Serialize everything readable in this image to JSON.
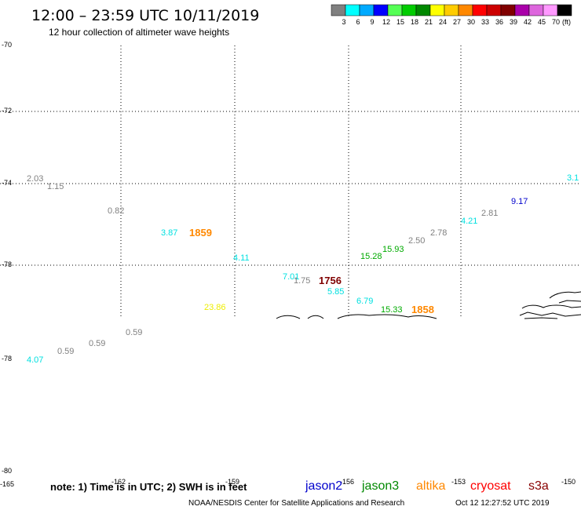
{
  "title": "12:00 – 23:59 UTC 10/11/2019",
  "subtitle": "12 hour collection of altimeter wave heights",
  "scale": {
    "unit": "(ft)",
    "bins": [
      {
        "label": "3",
        "color": "#808080"
      },
      {
        "label": "6",
        "color": "#00ffff"
      },
      {
        "label": "9",
        "color": "#00aaff"
      },
      {
        "label": "12",
        "color": "#0000ff"
      },
      {
        "label": "15",
        "color": "#55ff55"
      },
      {
        "label": "18",
        "color": "#00cc00"
      },
      {
        "label": "21",
        "color": "#008800"
      },
      {
        "label": "24",
        "color": "#ffff00"
      },
      {
        "label": "27",
        "color": "#ffcc00"
      },
      {
        "label": "30",
        "color": "#ff8800"
      },
      {
        "label": "33",
        "color": "#ff0000"
      },
      {
        "label": "36",
        "color": "#cc0000"
      },
      {
        "label": "39",
        "color": "#800000"
      },
      {
        "label": "42",
        "color": "#aa00aa"
      },
      {
        "label": "45",
        "color": "#dd66dd"
      },
      {
        "label": "70",
        "color": "#ff99ff"
      },
      {
        "label": "",
        "color": "#000000"
      }
    ]
  },
  "lat_ticks": [
    "-70",
    "-72",
    "-74",
    "-78",
    "-78",
    "-80"
  ],
  "lon_ticks": [
    "-165",
    "-162",
    "-159",
    "-156",
    "-153",
    "-150"
  ],
  "wave_heights": [
    {
      "text": "2.03",
      "color": "#808080"
    },
    {
      "text": "1.15",
      "color": "#808080"
    },
    {
      "text": "0.82",
      "color": "#808080"
    },
    {
      "text": "3.87",
      "color": "#00e0e0"
    },
    {
      "text": "4.11",
      "color": "#00e0e0"
    },
    {
      "text": "7.01",
      "color": "#00e0e0"
    },
    {
      "text": "1.75",
      "color": "#808080"
    },
    {
      "text": "5.85",
      "color": "#00e0e0"
    },
    {
      "text": "6.79",
      "color": "#00e0e0"
    },
    {
      "text": "15.33",
      "color": "#00aa00"
    },
    {
      "text": "15.28",
      "color": "#00aa00"
    },
    {
      "text": "15.93",
      "color": "#00aa00"
    },
    {
      "text": "2.50",
      "color": "#808080"
    },
    {
      "text": "2.78",
      "color": "#808080"
    },
    {
      "text": "4.21",
      "color": "#00e0e0"
    },
    {
      "text": "2.81",
      "color": "#808080"
    },
    {
      "text": "9.17",
      "color": "#0000cc"
    },
    {
      "text": "3.1",
      "color": "#00e0e0"
    },
    {
      "text": "23.86",
      "color": "#eeee00"
    },
    {
      "text": "0.59",
      "color": "#808080"
    },
    {
      "text": "0.59",
      "color": "#808080"
    },
    {
      "text": "0.59",
      "color": "#808080"
    },
    {
      "text": "4.07",
      "color": "#00e0e0"
    }
  ],
  "pass_times": [
    {
      "text": "1859",
      "color": "#ff8800"
    },
    {
      "text": "1756",
      "color": "#800000"
    },
    {
      "text": "1858",
      "color": "#ff8800"
    }
  ],
  "note": "note: 1) Time is in UTC; 2) SWH is in feet",
  "satellites": [
    {
      "name": "jason2",
      "color": "#0000cc"
    },
    {
      "name": "jason3",
      "color": "#008800"
    },
    {
      "name": "altika",
      "color": "#ff8800"
    },
    {
      "name": "cryosat",
      "color": "#ff0000"
    },
    {
      "name": "s3a",
      "color": "#880000"
    }
  ],
  "footer": {
    "credit": "NOAA/NESDIS Center for Satellite Applications and Research",
    "timestamp": "Oct 12 12:27:52 UTC 2019"
  }
}
